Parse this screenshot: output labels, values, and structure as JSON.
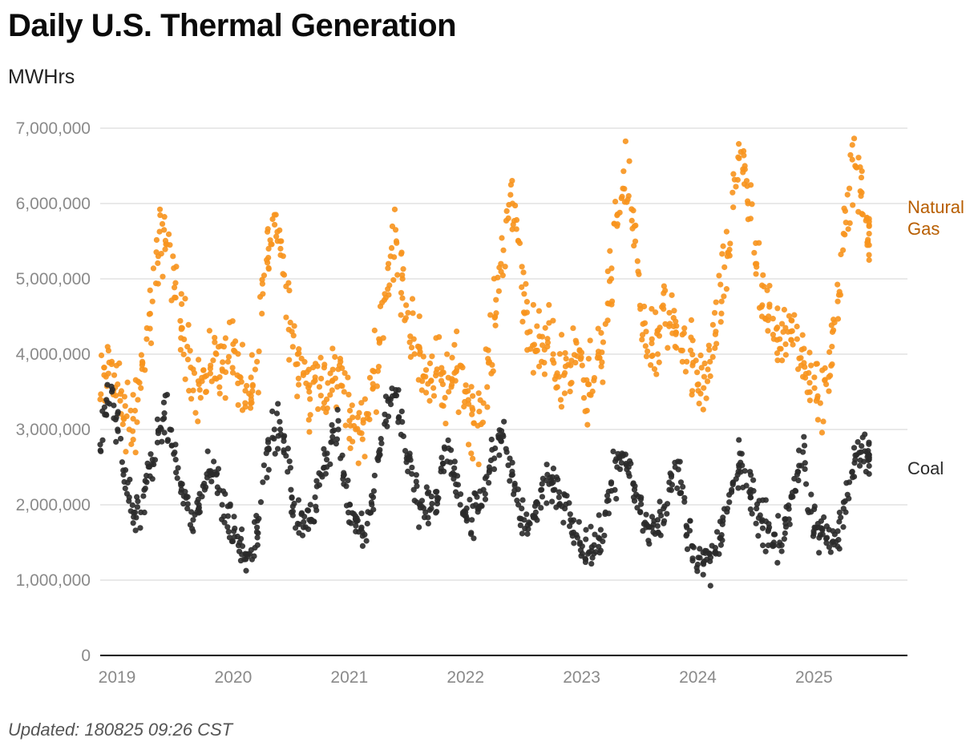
{
  "title": "Daily U.S. Thermal Generation",
  "footer": "Updated: 180825 09:26 CST",
  "colors": {
    "natural_gas": "#f7941d",
    "natural_gas_label": "#b85e00",
    "coal": "#2a2a2a",
    "coal_label": "#2a2a2a",
    "grid": "#e2e2e2",
    "axis": "#000000"
  },
  "chart_data": {
    "type": "scatter",
    "title": "Daily U.S. Thermal Generation",
    "xlabel": "",
    "ylabel": "MWHrs",
    "xlim": [
      2019.0,
      2025.95
    ],
    "ylim": [
      0,
      7000000
    ],
    "x_ticks": [
      2019,
      2020,
      2021,
      2022,
      2023,
      2024,
      2025
    ],
    "x_tick_labels": [
      "2019",
      "2020",
      "2021",
      "2022",
      "2023",
      "2024",
      "2025"
    ],
    "y_ticks": [
      0,
      1000000,
      2000000,
      3000000,
      4000000,
      5000000,
      6000000,
      7000000
    ],
    "y_tick_labels": [
      "0",
      "1,000,000",
      "2,000,000",
      "3,000,000",
      "4,000,000",
      "5,000,000",
      "6,000,000",
      "7,000,000"
    ],
    "grid": true,
    "legend": "direct labels at right end of each series",
    "resolution": "weekly approximation of daily series",
    "series": [
      {
        "name": "Natural Gas",
        "label_lines": [
          "Natural",
          "Gas"
        ],
        "x": [
          2019.0,
          2019.05,
          2019.1,
          2019.15,
          2019.2,
          2019.25,
          2019.3,
          2019.35,
          2019.4,
          2019.45,
          2019.5,
          2019.55,
          2019.6,
          2019.65,
          2019.7,
          2019.75,
          2019.8,
          2019.85,
          2019.9,
          2019.95,
          2020.0,
          2020.05,
          2020.1,
          2020.15,
          2020.2,
          2020.25,
          2020.3,
          2020.35,
          2020.4,
          2020.45,
          2020.5,
          2020.55,
          2020.6,
          2020.65,
          2020.7,
          2020.75,
          2020.8,
          2020.85,
          2020.9,
          2020.95,
          2021.0,
          2021.05,
          2021.1,
          2021.15,
          2021.2,
          2021.25,
          2021.3,
          2021.35,
          2021.4,
          2021.45,
          2021.5,
          2021.55,
          2021.6,
          2021.65,
          2021.7,
          2021.75,
          2021.8,
          2021.85,
          2021.9,
          2021.95,
          2022.0,
          2022.05,
          2022.1,
          2022.15,
          2022.2,
          2022.25,
          2022.3,
          2022.35,
          2022.4,
          2022.45,
          2022.5,
          2022.55,
          2022.6,
          2022.65,
          2022.7,
          2022.75,
          2022.8,
          2022.85,
          2022.9,
          2022.95,
          2023.0,
          2023.05,
          2023.1,
          2023.15,
          2023.2,
          2023.25,
          2023.3,
          2023.35,
          2023.4,
          2023.45,
          2023.5,
          2023.55,
          2023.6,
          2023.65,
          2023.7,
          2023.75,
          2023.8,
          2023.85,
          2023.9,
          2023.95,
          2024.0,
          2024.05,
          2024.1,
          2024.15,
          2024.2,
          2024.25,
          2024.3,
          2024.35,
          2024.4,
          2024.45,
          2024.5,
          2024.55,
          2024.6,
          2024.65,
          2024.7,
          2024.75,
          2024.8,
          2024.85,
          2024.9,
          2024.95,
          2025.0,
          2025.05,
          2025.1,
          2025.15,
          2025.2,
          2025.25,
          2025.3,
          2025.35,
          2025.4,
          2025.45,
          2025.5,
          2025.55,
          2025.6,
          2025.62
        ],
        "values": [
          3400000,
          3700000,
          3900000,
          3600000,
          3150000,
          3000000,
          3250000,
          3550000,
          4200000,
          4700000,
          5300000,
          5650000,
          5450000,
          4750000,
          4350000,
          4100000,
          3800000,
          3600000,
          3700000,
          3850000,
          4000000,
          3800000,
          3900000,
          4050000,
          3700000,
          3300000,
          3400000,
          3900000,
          4800000,
          5400000,
          5850000,
          5500000,
          4900000,
          4300000,
          4000000,
          3750000,
          3500000,
          3650000,
          3450000,
          3400000,
          3650000,
          3800000,
          3500000,
          3250000,
          3000000,
          2950000,
          3150000,
          3550000,
          4200000,
          4800000,
          5300000,
          5500000,
          5050000,
          4550000,
          4200000,
          4000000,
          3700000,
          3650000,
          3800000,
          3600000,
          3500000,
          3750000,
          3850000,
          3500000,
          3200000,
          3050000,
          3350000,
          3900000,
          4500000,
          5200000,
          5900000,
          6000000,
          5500000,
          4800000,
          4300000,
          4050000,
          3900000,
          4100000,
          4000000,
          3700000,
          3750000,
          3850000,
          4150000,
          3850000,
          3600000,
          3650000,
          3950000,
          4400000,
          5000000,
          5700000,
          6200000,
          6100000,
          5700000,
          4600000,
          4300000,
          4200000,
          4000000,
          4600000,
          4550000,
          4100000,
          4050000,
          3900000,
          3850000,
          3600000,
          3700000,
          3900000,
          4300000,
          4700000,
          5300000,
          5950000,
          6600000,
          6500000,
          5800000,
          5200000,
          4650000,
          4450000,
          4200000,
          4200000,
          4350000,
          4450000,
          4200000,
          3700000,
          3750000,
          3550000,
          3350000,
          3600000,
          4100000,
          4700000,
          5600000,
          6200000,
          6500000,
          6100000,
          5800000,
          5600000
        ]
      },
      {
        "name": "Coal",
        "label_lines": [
          "Coal"
        ],
        "x": [
          2019.0,
          2019.05,
          2019.1,
          2019.15,
          2019.2,
          2019.25,
          2019.3,
          2019.35,
          2019.4,
          2019.45,
          2019.5,
          2019.55,
          2019.6,
          2019.65,
          2019.7,
          2019.75,
          2019.8,
          2019.85,
          2019.9,
          2019.95,
          2020.0,
          2020.05,
          2020.1,
          2020.15,
          2020.2,
          2020.25,
          2020.3,
          2020.35,
          2020.4,
          2020.45,
          2020.5,
          2020.55,
          2020.6,
          2020.65,
          2020.7,
          2020.75,
          2020.8,
          2020.85,
          2020.9,
          2020.95,
          2021.0,
          2021.05,
          2021.1,
          2021.15,
          2021.2,
          2021.25,
          2021.3,
          2021.35,
          2021.4,
          2021.45,
          2021.5,
          2021.55,
          2021.6,
          2021.65,
          2021.7,
          2021.75,
          2021.8,
          2021.85,
          2021.9,
          2021.95,
          2022.0,
          2022.05,
          2022.1,
          2022.15,
          2022.2,
          2022.25,
          2022.3,
          2022.35,
          2022.4,
          2022.45,
          2022.5,
          2022.55,
          2022.6,
          2022.65,
          2022.7,
          2022.75,
          2022.8,
          2022.85,
          2022.9,
          2022.95,
          2023.0,
          2023.05,
          2023.1,
          2023.15,
          2023.2,
          2023.25,
          2023.3,
          2023.35,
          2023.4,
          2023.45,
          2023.5,
          2023.55,
          2023.6,
          2023.65,
          2023.7,
          2023.75,
          2023.8,
          2023.85,
          2023.9,
          2023.95,
          2024.0,
          2024.05,
          2024.1,
          2024.15,
          2024.2,
          2024.25,
          2024.3,
          2024.35,
          2024.4,
          2024.45,
          2024.5,
          2024.55,
          2024.6,
          2024.65,
          2024.7,
          2024.75,
          2024.8,
          2024.85,
          2024.9,
          2024.95,
          2025.0,
          2025.05,
          2025.1,
          2025.15,
          2025.2,
          2025.25,
          2025.3,
          2025.35,
          2025.4,
          2025.45,
          2025.5,
          2025.55,
          2025.6,
          2025.62
        ],
        "values": [
          2800000,
          3200000,
          3500000,
          3000000,
          2400000,
          2100000,
          1900000,
          1900000,
          2300000,
          2600000,
          2950000,
          3150000,
          3000000,
          2600000,
          2200000,
          1950000,
          1800000,
          2000000,
          2200000,
          2450000,
          2400000,
          2000000,
          1850000,
          1650000,
          1500000,
          1350000,
          1400000,
          1700000,
          2300000,
          2750000,
          3000000,
          3000000,
          2650000,
          2100000,
          1750000,
          1700000,
          1800000,
          2100000,
          2400000,
          2600000,
          2900000,
          3000000,
          2400000,
          2000000,
          1800000,
          1700000,
          1750000,
          2100000,
          2700000,
          3200000,
          3400000,
          3450000,
          3100000,
          2600000,
          2200000,
          2000000,
          1900000,
          1950000,
          2100000,
          2550000,
          2750000,
          2400000,
          2000000,
          1850000,
          1800000,
          1950000,
          2200000,
          2500000,
          2750000,
          2850000,
          2700000,
          2400000,
          2000000,
          1800000,
          1750000,
          1900000,
          2200000,
          2400000,
          2300000,
          2100000,
          1950000,
          1800000,
          1600000,
          1450000,
          1350000,
          1350000,
          1550000,
          1900000,
          2300000,
          2500000,
          2650000,
          2500000,
          2200000,
          1900000,
          1700000,
          1700000,
          1800000,
          1950000,
          2200000,
          2500000,
          2300000,
          1700000,
          1450000,
          1300000,
          1250000,
          1250000,
          1350000,
          1600000,
          1950000,
          2300000,
          2500000,
          2450000,
          2200000,
          1950000,
          1800000,
          1650000,
          1500000,
          1500000,
          1750000,
          2100000,
          2400000,
          2700000,
          1900000,
          1700000,
          1600000,
          1550000,
          1500000,
          1650000,
          1950000,
          2300000,
          2600000,
          2700000,
          2700000,
          2600000
        ]
      }
    ]
  }
}
